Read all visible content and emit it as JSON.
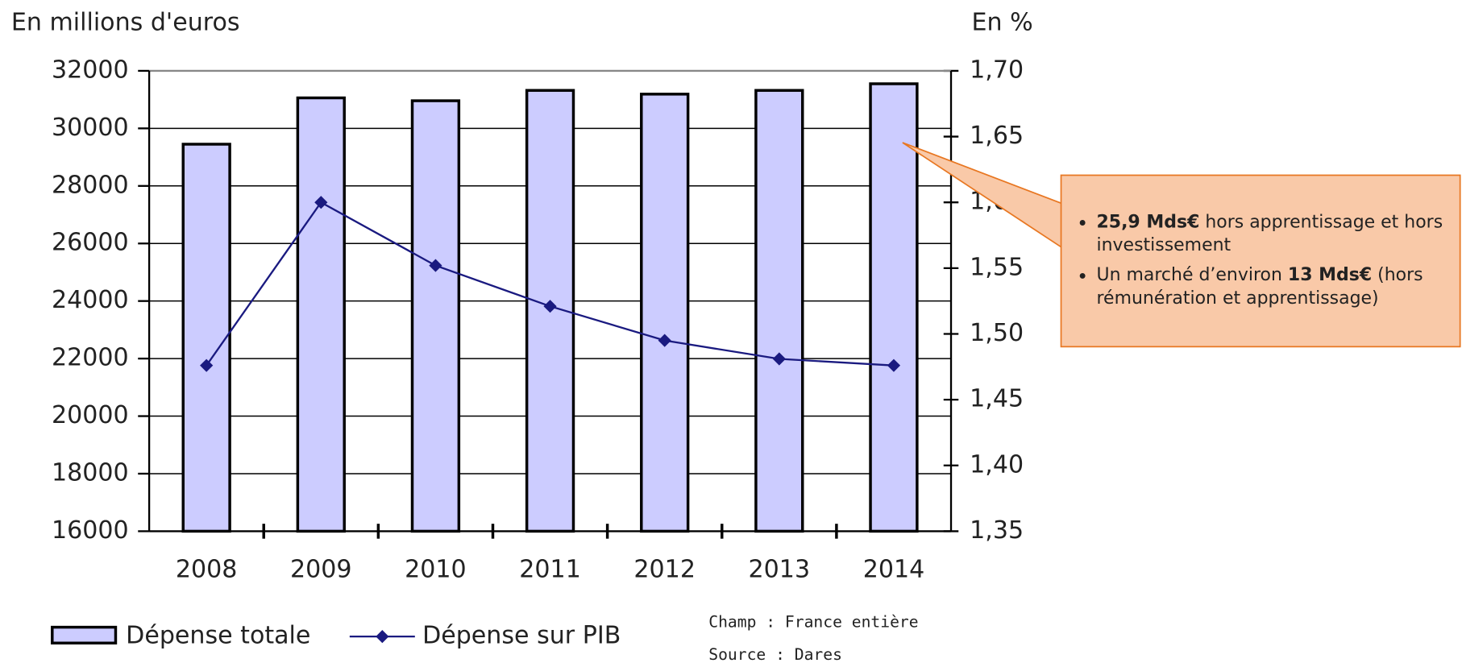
{
  "chart_data": {
    "type": "bar",
    "y_label": "En millions d'euros",
    "y2_label": "En %",
    "categories": [
      "2008",
      "2009",
      "2010",
      "2011",
      "2012",
      "2013",
      "2014"
    ],
    "series": [
      {
        "name": "Dépense totale",
        "type": "bar",
        "color": "#ccccff",
        "values": [
          29450,
          31060,
          30960,
          31320,
          31190,
          31320,
          31550
        ]
      },
      {
        "name": "Dépense sur PIB",
        "type": "line",
        "axis": "y2",
        "color": "#1a1a80",
        "values": [
          1.476,
          1.6,
          1.552,
          1.521,
          1.495,
          1.481,
          1.476
        ]
      }
    ],
    "ylim": [
      16000,
      32000
    ],
    "yticks": [
      16000,
      18000,
      20000,
      22000,
      24000,
      26000,
      28000,
      30000,
      32000
    ],
    "y2lim": [
      1.35,
      1.7
    ],
    "y2ticks": [
      {
        "value": 1.35,
        "label": "1,35"
      },
      {
        "value": 1.4,
        "label": "1,40"
      },
      {
        "value": 1.45,
        "label": "1,45"
      },
      {
        "value": 1.5,
        "label": "1,50"
      },
      {
        "value": 1.55,
        "label": "1,55"
      },
      {
        "value": 1.6,
        "label": "1,60"
      },
      {
        "value": 1.65,
        "label": "1,65"
      },
      {
        "value": 1.7,
        "label": "1,70"
      }
    ],
    "grid": true,
    "notes": [
      "Champ : France entière",
      "Source : Dares"
    ],
    "annotation": {
      "items": [
        [
          {
            "text": "25,9 Mds€",
            "bold": true
          },
          {
            "text": " hors apprentissage et hors investissement"
          }
        ],
        [
          {
            "text": "Un marché d’environ "
          },
          {
            "text": "13 Mds€",
            "bold": true
          },
          {
            "text": " (hors rémunération et apprentissage)"
          }
        ]
      ]
    }
  }
}
